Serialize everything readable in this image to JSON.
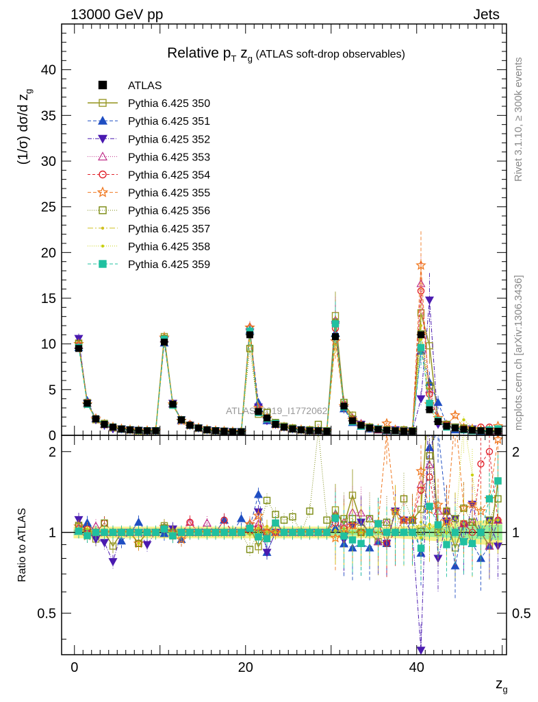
{
  "header": {
    "energy_label": "13000 GeV pp",
    "process_label": "Jets",
    "title_main": "Relative p",
    "title_sub_t": "T",
    "title_mid": " z",
    "title_sub_g": "g",
    "title_paren": " (ATLAS soft-drop observables)"
  },
  "side": {
    "rivet_label": "Rivet 3.1.10, ≥ 300k events",
    "mcplots_label": "mcplots.cern.ch [arXiv:1306.3436]",
    "watermark": "ATLAS_2019_I1772062"
  },
  "axes": {
    "y_main_label": "(1/σ) dσ/d z",
    "y_main_sub": "g",
    "y_ratio_label": "Ratio to ATLAS",
    "x_label": "z",
    "x_sub": "g"
  },
  "chart_data": {
    "type": "scatter",
    "x_range": [
      -1.5,
      50.5
    ],
    "main_ylim": [
      0,
      45
    ],
    "ratio_ylim": [
      0.35,
      2.3
    ],
    "main_yticks": [
      0,
      5,
      10,
      15,
      20,
      25,
      30,
      35,
      40
    ],
    "ratio_yticks": [
      0.5,
      1,
      2
    ],
    "xticks": [
      0,
      20,
      40
    ],
    "grid": false,
    "legend_position": "top-left",
    "x": [
      0.5,
      1.5,
      2.5,
      3.5,
      4.5,
      5.5,
      6.5,
      7.5,
      8.5,
      9.5,
      10.5,
      11.5,
      12.5,
      13.5,
      14.5,
      15.5,
      16.5,
      17.5,
      18.5,
      19.5,
      20.5,
      21.5,
      22.5,
      23.5,
      24.5,
      25.5,
      26.5,
      27.5,
      28.5,
      29.5,
      30.5,
      31.5,
      32.5,
      33.5,
      34.5,
      35.5,
      36.5,
      37.5,
      38.5,
      39.5,
      40.5,
      41.5,
      42.5,
      43.5,
      44.5,
      45.5,
      46.5,
      47.5,
      48.5,
      49.5
    ],
    "reference": {
      "name": "ATLAS",
      "values": [
        9.5,
        3.5,
        1.8,
        1.2,
        0.9,
        0.7,
        0.6,
        0.55,
        0.5,
        0.5,
        10.2,
        3.4,
        1.7,
        1.1,
        0.8,
        0.6,
        0.5,
        0.45,
        0.4,
        0.4,
        11.0,
        2.6,
        1.9,
        1.2,
        0.9,
        0.7,
        0.6,
        0.5,
        0.5,
        0.45,
        10.8,
        3.2,
        1.6,
        1.1,
        0.8,
        0.65,
        0.55,
        0.5,
        0.45,
        0.45,
        11.0,
        2.8,
        1.5,
        1.0,
        0.8,
        0.65,
        0.55,
        0.5,
        0.45,
        0.45
      ]
    },
    "series": [
      {
        "name": "Pythia 6.425 350",
        "color": "#9a9a2a",
        "marker": "square-open",
        "dash": "",
        "lw": 1.6,
        "values": [
          10.1,
          3.6,
          1.7,
          1.2,
          0.8,
          0.7,
          0.6,
          0.5,
          0.5,
          0.5,
          10.8,
          3.3,
          1.7,
          1.1,
          0.8,
          0.6,
          0.5,
          0.45,
          0.4,
          0.4,
          11.6,
          2.3,
          1.9,
          1.3,
          0.9,
          0.7,
          0.6,
          0.5,
          0.5,
          0.45,
          13.1,
          3.4,
          2.2,
          1.2,
          0.8,
          0.6,
          0.5,
          0.6,
          0.5,
          0.5,
          13.4,
          9.8,
          1.5,
          1.1,
          0.7,
          0.7,
          0.6,
          0.5,
          0.4,
          0.7
        ]
      },
      {
        "name": "Pythia 6.425 351",
        "color": "#1f4ec2",
        "marker": "triangle-up",
        "dash": "5,3",
        "lw": 1,
        "values": [
          9.6,
          3.8,
          1.8,
          1.2,
          0.9,
          0.65,
          0.6,
          0.6,
          0.5,
          0.5,
          10.1,
          3.5,
          1.6,
          1.1,
          0.8,
          0.6,
          0.5,
          0.5,
          0.4,
          0.45,
          11.5,
          3.6,
          1.6,
          1.2,
          0.9,
          0.7,
          0.6,
          0.5,
          0.5,
          0.45,
          11.2,
          2.9,
          1.4,
          1.0,
          0.7,
          0.6,
          0.5,
          0.5,
          0.45,
          0.5,
          9.2,
          5.8,
          3.6,
          1.2,
          0.6,
          0.7,
          0.5,
          0.4,
          0.4,
          0.5
        ]
      },
      {
        "name": "Pythia 6.425 352",
        "color": "#4a1ab0",
        "marker": "triangle-down",
        "dash": "6,2,1,2",
        "lw": 1,
        "values": [
          10.6,
          3.5,
          1.7,
          1.1,
          0.7,
          0.7,
          0.6,
          0.55,
          0.45,
          0.5,
          10.4,
          3.5,
          1.7,
          1.1,
          0.8,
          0.6,
          0.5,
          0.45,
          0.4,
          0.4,
          11.3,
          3.1,
          1.6,
          1.2,
          0.9,
          0.7,
          0.6,
          0.5,
          0.5,
          0.45,
          12.1,
          3.0,
          1.7,
          1.2,
          0.8,
          0.7,
          0.5,
          0.6,
          0.5,
          0.45,
          4.0,
          14.8,
          1.2,
          1.1,
          0.9,
          0.6,
          0.7,
          0.5,
          0.5,
          0.4
        ]
      },
      {
        "name": "Pythia 6.425 353",
        "color": "#c0308a",
        "marker": "triangle-up-open",
        "dash": "1,2",
        "lw": 1,
        "values": [
          9.9,
          3.5,
          1.9,
          1.2,
          0.9,
          0.7,
          0.6,
          0.55,
          0.5,
          0.5,
          10.6,
          3.4,
          1.7,
          1.2,
          0.8,
          0.65,
          0.5,
          0.45,
          0.4,
          0.4,
          11.9,
          2.8,
          1.8,
          1.3,
          0.9,
          0.7,
          0.6,
          0.5,
          0.5,
          0.45,
          12.6,
          3.5,
          1.9,
          1.3,
          0.9,
          0.6,
          0.6,
          0.5,
          0.5,
          0.5,
          16.6,
          5.0,
          1.8,
          1.2,
          0.8,
          0.7,
          0.6,
          0.5,
          0.4,
          0.5
        ]
      },
      {
        "name": "Pythia 6.425 354",
        "color": "#e0202a",
        "marker": "circle-open",
        "dash": "4,3",
        "lw": 1,
        "values": [
          9.8,
          3.6,
          1.8,
          1.3,
          0.9,
          0.7,
          0.6,
          0.5,
          0.5,
          0.5,
          10.5,
          3.3,
          1.7,
          1.2,
          0.8,
          0.6,
          0.5,
          0.5,
          0.4,
          0.4,
          11.1,
          2.7,
          1.9,
          1.2,
          0.9,
          0.7,
          0.6,
          0.5,
          0.5,
          0.45,
          11.7,
          3.3,
          1.7,
          1.1,
          0.8,
          0.7,
          0.5,
          0.5,
          0.5,
          0.5,
          15.8,
          4.5,
          1.6,
          1.2,
          0.8,
          0.7,
          0.55,
          0.9,
          0.9,
          0.5
        ]
      },
      {
        "name": "Pythia 6.425 355",
        "color": "#f07820",
        "marker": "star-open",
        "dash": "5,3",
        "lw": 1,
        "values": [
          10.0,
          3.4,
          1.8,
          1.2,
          0.9,
          0.7,
          0.6,
          0.5,
          0.5,
          0.5,
          10.7,
          3.4,
          1.6,
          1.1,
          0.8,
          0.6,
          0.5,
          0.45,
          0.4,
          0.4,
          11.8,
          3.0,
          1.9,
          1.2,
          0.9,
          0.7,
          0.6,
          0.5,
          0.5,
          0.45,
          10.3,
          3.2,
          1.7,
          1.1,
          0.8,
          0.7,
          1.3,
          0.6,
          0.5,
          0.5,
          18.6,
          3.4,
          1.9,
          1.1,
          2.2,
          0.8,
          0.7,
          0.6,
          0.6,
          1.0
        ]
      },
      {
        "name": "Pythia 6.425 356",
        "color": "#7a8a10",
        "marker": "square-open",
        "dash": "1,2",
        "lw": 1,
        "values": [
          10.0,
          3.5,
          1.8,
          1.3,
          0.9,
          0.7,
          0.6,
          0.5,
          0.5,
          0.5,
          10.6,
          3.4,
          1.7,
          1.1,
          0.8,
          0.6,
          0.5,
          0.45,
          0.4,
          0.4,
          9.5,
          2.6,
          2.5,
          1.4,
          1.0,
          0.8,
          0.6,
          0.6,
          1.2,
          0.5,
          12.3,
          3.6,
          1.8,
          1.1,
          0.9,
          0.7,
          0.6,
          0.5,
          0.6,
          0.5,
          11.1,
          5.4,
          1.6,
          1.2,
          0.9,
          0.8,
          0.6,
          0.5,
          0.5,
          0.6
        ]
      },
      {
        "name": "Pythia 6.425 357",
        "color": "#d0c020",
        "marker": "dot",
        "dash": "8,3,2,3",
        "lw": 1,
        "values": [
          9.8,
          3.5,
          1.8,
          1.2,
          0.9,
          0.7,
          0.6,
          0.55,
          0.5,
          0.5,
          10.3,
          3.4,
          1.7,
          1.1,
          0.8,
          0.6,
          0.5,
          0.45,
          0.4,
          0.4,
          10.9,
          2.7,
          2.0,
          1.2,
          0.9,
          0.7,
          0.6,
          0.5,
          0.5,
          0.45,
          11.0,
          3.2,
          1.6,
          1.1,
          0.8,
          0.65,
          0.55,
          0.6,
          0.45,
          0.45,
          12.0,
          2.9,
          1.6,
          1.0,
          0.9,
          0.7,
          0.5,
          0.5,
          0.5,
          0.5
        ]
      },
      {
        "name": "Pythia 6.425 358",
        "color": "#c8d010",
        "marker": "dot",
        "dash": "1,2",
        "lw": 1,
        "values": [
          9.7,
          3.6,
          1.8,
          1.2,
          0.9,
          0.7,
          0.6,
          0.5,
          0.5,
          0.5,
          10.4,
          3.4,
          1.7,
          1.1,
          0.8,
          0.6,
          0.5,
          0.45,
          0.4,
          0.4,
          10.8,
          2.6,
          1.9,
          1.2,
          0.9,
          0.7,
          0.6,
          0.5,
          0.5,
          0.45,
          10.9,
          3.3,
          1.6,
          1.1,
          0.8,
          0.65,
          0.55,
          0.5,
          0.45,
          0.45,
          10.5,
          3.0,
          1.5,
          1.0,
          0.8,
          1.7,
          0.9,
          0.5,
          0.5,
          0.5
        ]
      },
      {
        "name": "Pythia 6.425 359",
        "color": "#20c0a0",
        "marker": "square",
        "dash": "5,3",
        "lw": 1,
        "values": [
          9.6,
          3.4,
          1.8,
          1.2,
          0.9,
          0.7,
          0.6,
          0.55,
          0.5,
          0.5,
          10.5,
          3.3,
          1.7,
          1.1,
          0.8,
          0.6,
          0.5,
          0.45,
          0.4,
          0.4,
          11.4,
          2.5,
          1.8,
          1.3,
          0.9,
          0.7,
          0.6,
          0.5,
          0.5,
          0.45,
          12.2,
          3.1,
          1.5,
          1.0,
          0.8,
          0.7,
          0.55,
          0.5,
          0.45,
          0.45,
          9.6,
          3.5,
          1.6,
          0.9,
          0.8,
          0.6,
          0.5,
          0.5,
          0.6,
          0.7
        ]
      }
    ]
  }
}
